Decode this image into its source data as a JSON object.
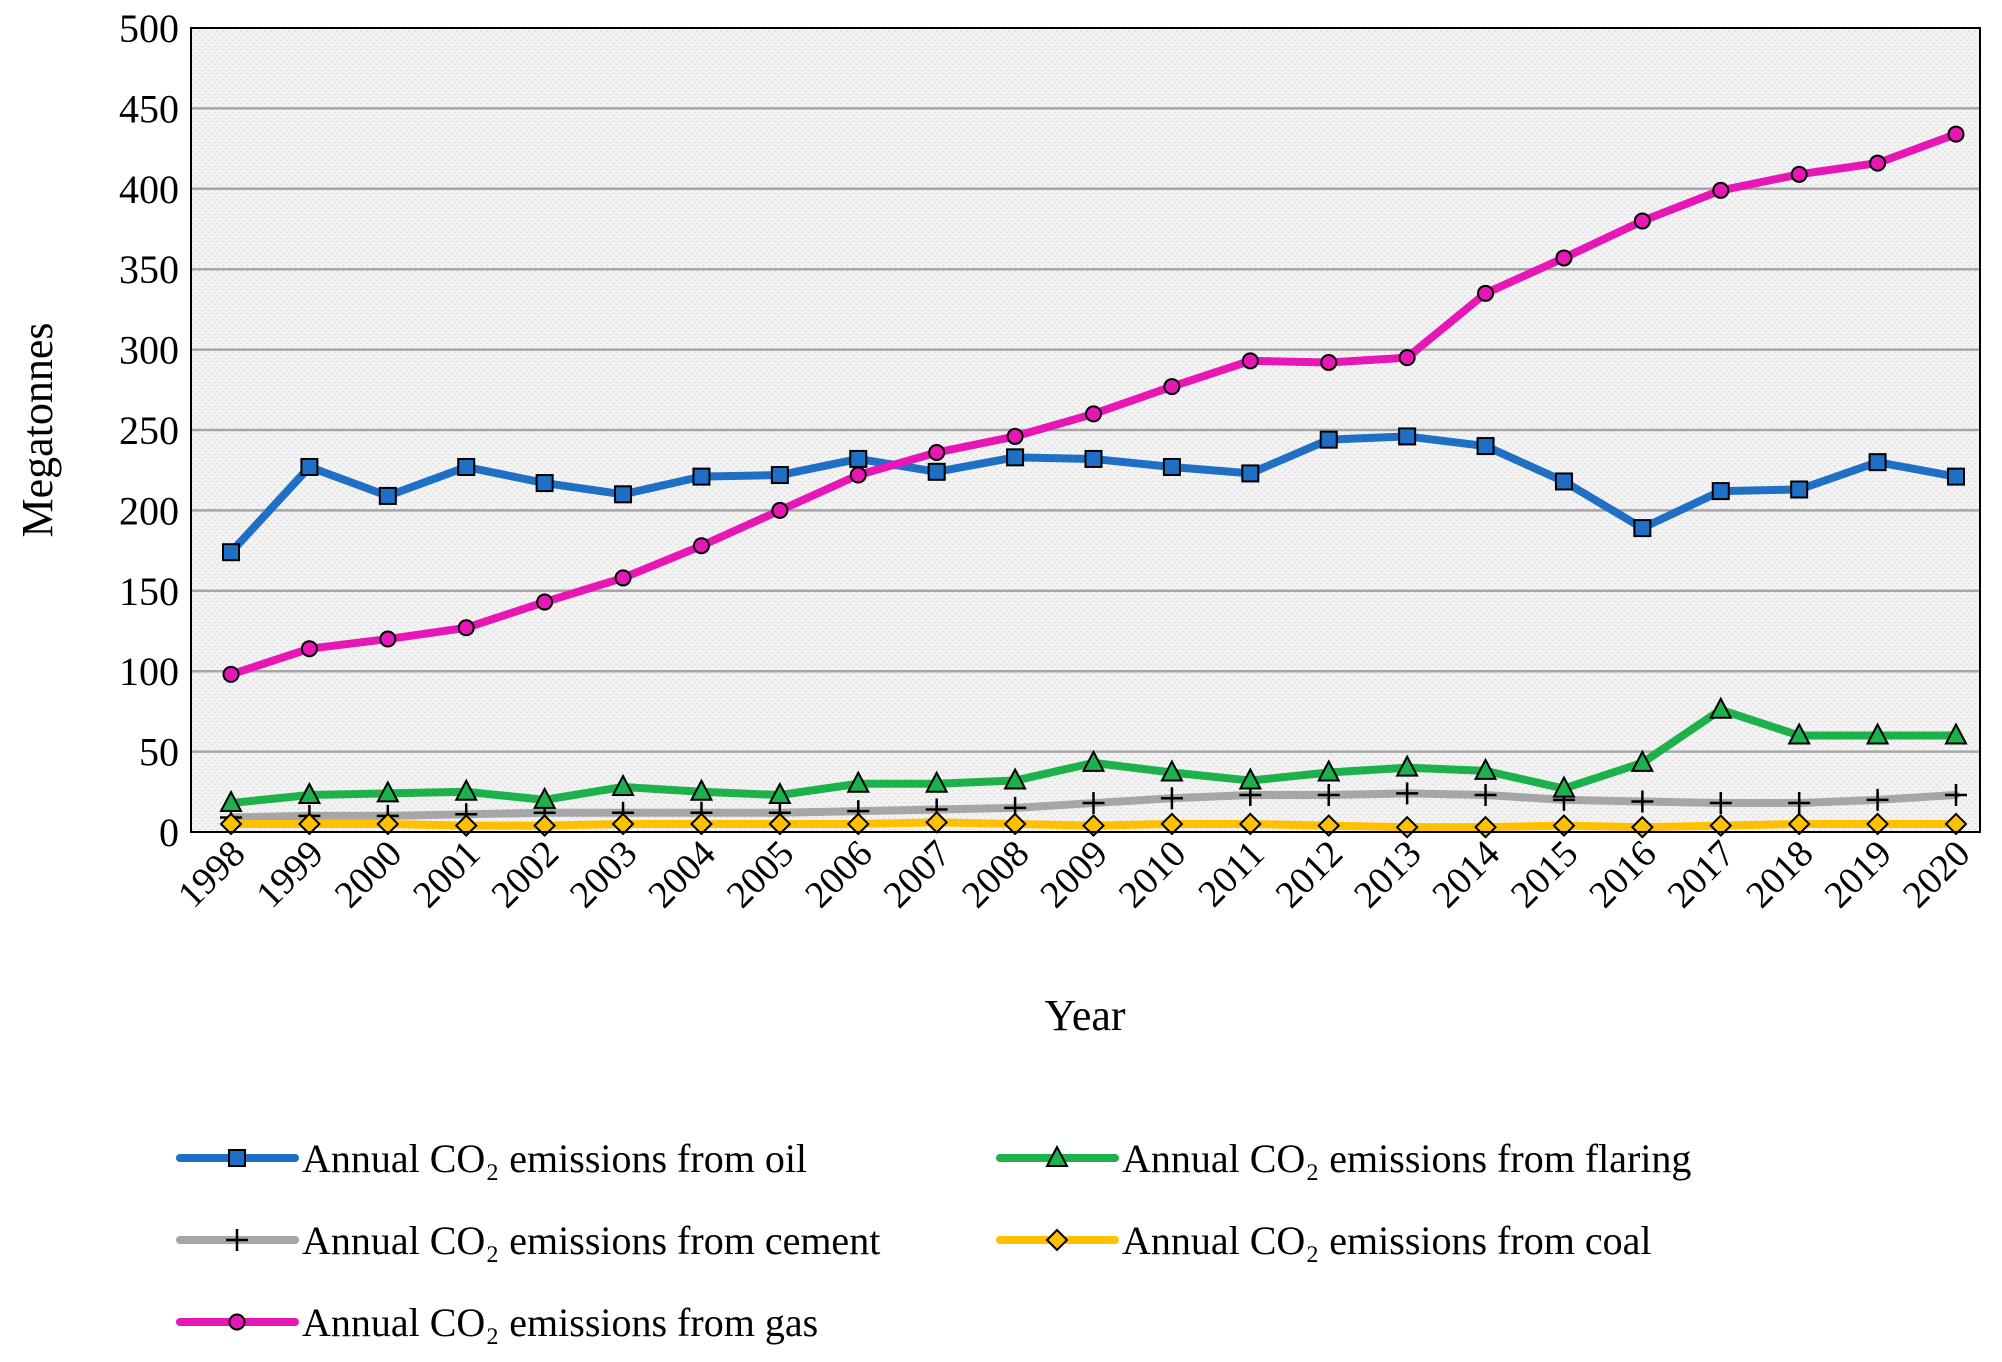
{
  "chart_data": {
    "type": "line",
    "title": "",
    "xlabel": "Year",
    "ylabel": "Megatonnes",
    "ylim": [
      0,
      500
    ],
    "yticks": [
      "0",
      "50",
      "100",
      "150",
      "200",
      "250",
      "300",
      "350",
      "400",
      "450",
      "500"
    ],
    "grid": true,
    "legend_position": "bottom",
    "categories": [
      "1998",
      "1999",
      "2000",
      "2001",
      "2002",
      "2003",
      "2004",
      "2005",
      "2006",
      "2007",
      "2008",
      "2009",
      "2010",
      "2011",
      "2012",
      "2013",
      "2014",
      "2015",
      "2016",
      "2017",
      "2018",
      "2019",
      "2020"
    ],
    "series": [
      {
        "name": "Annual CO₂ emissions from oil",
        "color": "#1f6fc5",
        "marker": "square",
        "values": [
          174,
          227,
          209,
          227,
          217,
          210,
          221,
          222,
          232,
          224,
          233,
          232,
          227,
          223,
          244,
          246,
          240,
          218,
          189,
          212,
          213,
          230,
          221
        ]
      },
      {
        "name": "Annual CO₂ emissions from flaring",
        "color": "#1db14b",
        "marker": "triangle",
        "values": [
          18,
          23,
          24,
          25,
          20,
          28,
          25,
          23,
          30,
          30,
          32,
          43,
          37,
          32,
          37,
          40,
          38,
          27,
          43,
          76,
          60,
          60,
          60
        ]
      },
      {
        "name": "Annual CO₂ emissions from cement",
        "color": "#a6a6a6",
        "marker": "plus",
        "values": [
          9,
          10,
          10,
          11,
          12,
          12,
          12,
          12,
          13,
          14,
          15,
          18,
          21,
          23,
          23,
          24,
          23,
          20,
          19,
          18,
          18,
          20,
          23
        ]
      },
      {
        "name": "Annual CO₂ emissions from coal",
        "color": "#ffc000",
        "marker": "diamond",
        "values": [
          5,
          5,
          5,
          4,
          4,
          5,
          5,
          5,
          5,
          6,
          5,
          4,
          5,
          5,
          4,
          3,
          3,
          4,
          3,
          4,
          5,
          5,
          5
        ]
      },
      {
        "name": "Annual CO₂ emissions from gas",
        "color": "#e617b4",
        "marker": "circle",
        "values": [
          98,
          114,
          120,
          127,
          143,
          158,
          178,
          200,
          222,
          236,
          246,
          260,
          277,
          293,
          292,
          295,
          335,
          357,
          380,
          399,
          409,
          416,
          434
        ]
      }
    ]
  }
}
